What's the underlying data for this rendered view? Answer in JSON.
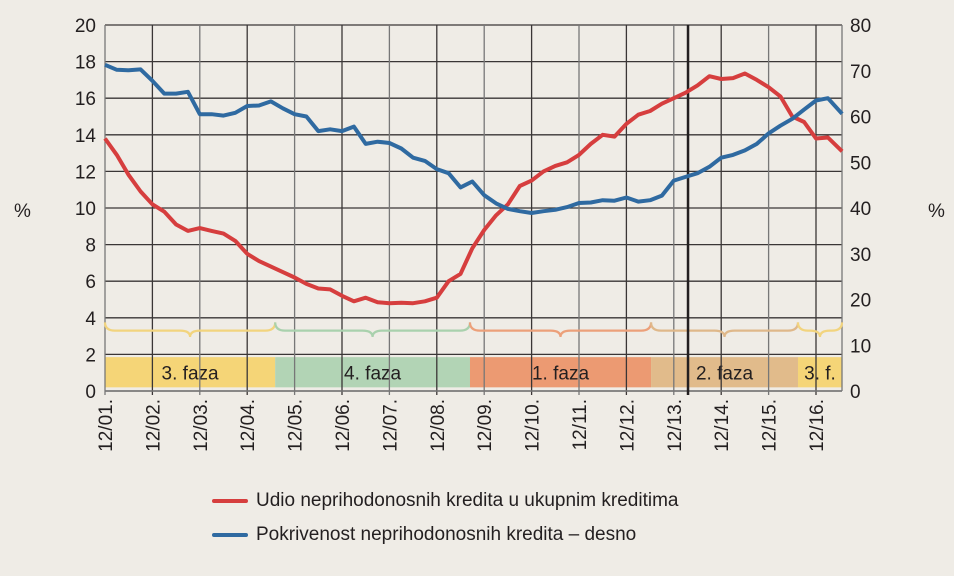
{
  "chart_data": {
    "type": "line",
    "title": "",
    "ylabel_left": "%",
    "ylabel_right": "%",
    "ylim_left": [
      0,
      20
    ],
    "ylim_right": [
      0,
      80
    ],
    "yticks_left": [
      0,
      2,
      4,
      6,
      8,
      10,
      12,
      14,
      16,
      18,
      20
    ],
    "yticks_right": [
      0,
      10,
      20,
      30,
      40,
      50,
      60,
      70,
      80
    ],
    "grid": true,
    "x_tick_labels": [
      "12/01.",
      "12/02.",
      "12/03.",
      "12/04.",
      "12/05.",
      "12/06.",
      "12/07.",
      "12/08.",
      "12/09.",
      "12/10.",
      "12/11.",
      "12/12.",
      "12/13.",
      "12/14.",
      "12/15.",
      "12/16."
    ],
    "x_range_years": [
      0,
      15.55
    ],
    "marker_line_year": 12.3,
    "phases": [
      {
        "label": "3. faza",
        "start": 0,
        "end": 3.59,
        "color": "#f5d577",
        "brace_color": "#f2d47e"
      },
      {
        "label": "4. faza",
        "start": 3.59,
        "end": 7.7,
        "color": "#b2d4b5",
        "brace_color": "#a9d1ad"
      },
      {
        "label": "1. faza",
        "start": 7.7,
        "end": 11.52,
        "color": "#ec9a72",
        "brace_color": "#eca07a"
      },
      {
        "label": "2. faza",
        "start": 11.52,
        "end": 14.62,
        "color": "#e1bb8b",
        "brace_color": "#dfb88a"
      },
      {
        "label": "3. f.",
        "start": 14.62,
        "end": 15.55,
        "color": "#f5d577",
        "brace_color": "#f2d47e"
      }
    ],
    "series": [
      {
        "name": "Udio neprihodonosnih kredita u ukupnim kreditima",
        "axis": "left",
        "color": "#d63e3e",
        "x": [
          0,
          0.25,
          0.5,
          0.75,
          1,
          1.25,
          1.5,
          1.75,
          2,
          2.25,
          2.5,
          2.75,
          3,
          3.25,
          3.5,
          3.75,
          4,
          4.25,
          4.5,
          4.75,
          5,
          5.25,
          5.5,
          5.75,
          6,
          6.25,
          6.5,
          6.75,
          7,
          7.25,
          7.5,
          7.75,
          8,
          8.25,
          8.5,
          8.75,
          9,
          9.25,
          9.5,
          9.75,
          10,
          10.25,
          10.5,
          10.75,
          11,
          11.25,
          11.5,
          11.75,
          12,
          12.25,
          12.5,
          12.75,
          13,
          13.25,
          13.5,
          13.75,
          14,
          14.25,
          14.5,
          14.75,
          15,
          15.25,
          15.55
        ],
        "values": [
          13.8,
          12.9,
          11.8,
          10.9,
          10.2,
          9.8,
          9.1,
          8.75,
          8.9,
          8.75,
          8.6,
          8.2,
          7.5,
          7.1,
          6.8,
          6.5,
          6.2,
          5.85,
          5.6,
          5.55,
          5.2,
          4.9,
          5.1,
          4.85,
          4.8,
          4.82,
          4.8,
          4.9,
          5.1,
          6.0,
          6.4,
          7.8,
          8.8,
          9.6,
          10.2,
          11.2,
          11.5,
          12.0,
          12.3,
          12.5,
          12.9,
          13.5,
          14.0,
          13.9,
          14.6,
          15.1,
          15.3,
          15.7,
          16.0,
          16.3,
          16.7,
          17.2,
          17.05,
          17.1,
          17.35,
          17.0,
          16.6,
          16.1,
          15.0,
          14.7,
          13.8,
          13.85,
          13.1
        ]
      },
      {
        "name": "Pokrivenost neprihodonosnih kredita – desno",
        "axis": "right",
        "color": "#2f6aa1",
        "x": [
          0,
          0.25,
          0.5,
          0.75,
          1,
          1.25,
          1.5,
          1.75,
          2,
          2.25,
          2.5,
          2.75,
          3,
          3.25,
          3.5,
          3.75,
          4,
          4.25,
          4.5,
          4.75,
          5,
          5.25,
          5.5,
          5.75,
          6,
          6.25,
          6.5,
          6.75,
          7,
          7.25,
          7.5,
          7.75,
          8,
          8.25,
          8.5,
          8.75,
          9,
          9.25,
          9.5,
          9.75,
          10,
          10.25,
          10.5,
          10.75,
          11,
          11.25,
          11.5,
          11.75,
          12,
          12.25,
          12.5,
          12.75,
          13,
          13.25,
          13.5,
          13.75,
          14,
          14.25,
          14.5,
          14.75,
          15,
          15.25,
          15.55
        ],
        "values": [
          71.3,
          70.2,
          70.1,
          70.3,
          67.8,
          65.0,
          65.0,
          65.4,
          60.5,
          60.5,
          60.2,
          60.8,
          62.3,
          62.4,
          63.3,
          61.8,
          60.5,
          60.0,
          56.8,
          57.2,
          56.8,
          57.8,
          54.0,
          54.5,
          54.2,
          53.0,
          51.0,
          50.3,
          48.5,
          47.6,
          44.5,
          45.8,
          42.8,
          41.0,
          39.8,
          39.3,
          38.9,
          39.3,
          39.6,
          40.2,
          41.1,
          41.2,
          41.7,
          41.6,
          42.3,
          41.4,
          41.7,
          42.7,
          46.0,
          46.8,
          47.6,
          49.0,
          51.0,
          51.6,
          52.6,
          54.0,
          56.3,
          58.0,
          59.5,
          61.5,
          63.5,
          64.0,
          60.6
        ]
      }
    ],
    "legend_position": "bottom-center"
  }
}
